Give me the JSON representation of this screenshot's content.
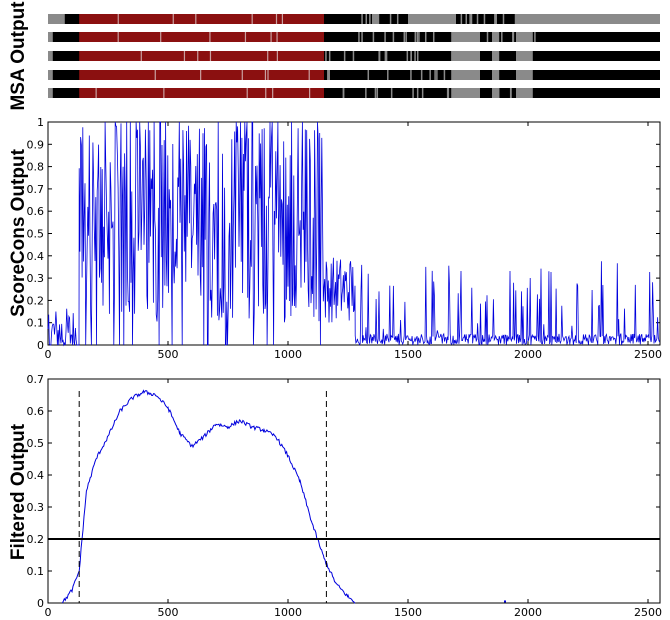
{
  "panels": {
    "msa": {
      "ylabel": "MSA Output"
    },
    "scorecons": {
      "ylabel": "ScoreCons Output"
    },
    "filtered": {
      "ylabel": "Filtered Output"
    }
  },
  "colors": {
    "msa_region": "#8b1010",
    "msa_black": "#000000",
    "msa_gray": "#8a8a8a",
    "series": "#0000dd",
    "threshold": "#000000"
  },
  "chart_data": [
    {
      "type": "heatmap",
      "name_printed": "",
      "rows": 5,
      "x_range": [
        0,
        2550
      ],
      "highlighted_region": [
        130,
        1150
      ],
      "note_values": "binary alignment tracks: black = aligned residue, gray = gap"
    },
    {
      "type": "line",
      "xlim": [
        0,
        2550
      ],
      "ylim": [
        0,
        1
      ],
      "x_ticks": [
        "0",
        "500",
        "1000",
        "1500",
        "2000",
        "2500"
      ],
      "y_ticks": [
        "0",
        "0.1",
        "0.2",
        "0.3",
        "0.4",
        "0.5",
        "0.6",
        "0.7",
        "0.8",
        "0.9",
        "1"
      ],
      "segments": [
        {
          "x": [
            0,
            130
          ],
          "level": 0.05,
          "spread": 0.12
        },
        {
          "x": [
            130,
            1150
          ],
          "level": 0.55,
          "spread": 0.45
        },
        {
          "x": [
            1150,
            1280
          ],
          "level": 0.25,
          "spread": 0.15
        },
        {
          "x": [
            1280,
            2550
          ],
          "level": 0.03,
          "spread": 0.25
        }
      ]
    },
    {
      "type": "line",
      "xlim": [
        0,
        2550
      ],
      "ylim": [
        0,
        0.7
      ],
      "x_ticks": [
        "0",
        "500",
        "1000",
        "1500",
        "2000",
        "2500"
      ],
      "y_ticks": [
        "0",
        "0.1",
        "0.2",
        "0.3",
        "0.4",
        "0.5",
        "0.6",
        "0.7"
      ],
      "x": [
        60,
        100,
        130,
        160,
        200,
        250,
        300,
        350,
        400,
        450,
        500,
        550,
        600,
        650,
        700,
        750,
        800,
        850,
        900,
        950,
        1000,
        1050,
        1100,
        1150,
        1200,
        1250,
        1280
      ],
      "y": [
        0.0,
        0.04,
        0.1,
        0.35,
        0.45,
        0.52,
        0.6,
        0.64,
        0.66,
        0.65,
        0.61,
        0.53,
        0.49,
        0.52,
        0.56,
        0.55,
        0.57,
        0.55,
        0.54,
        0.52,
        0.46,
        0.38,
        0.25,
        0.14,
        0.06,
        0.02,
        0.0
      ],
      "threshold": 0.2,
      "vlines_x": [
        130,
        1160
      ]
    }
  ]
}
